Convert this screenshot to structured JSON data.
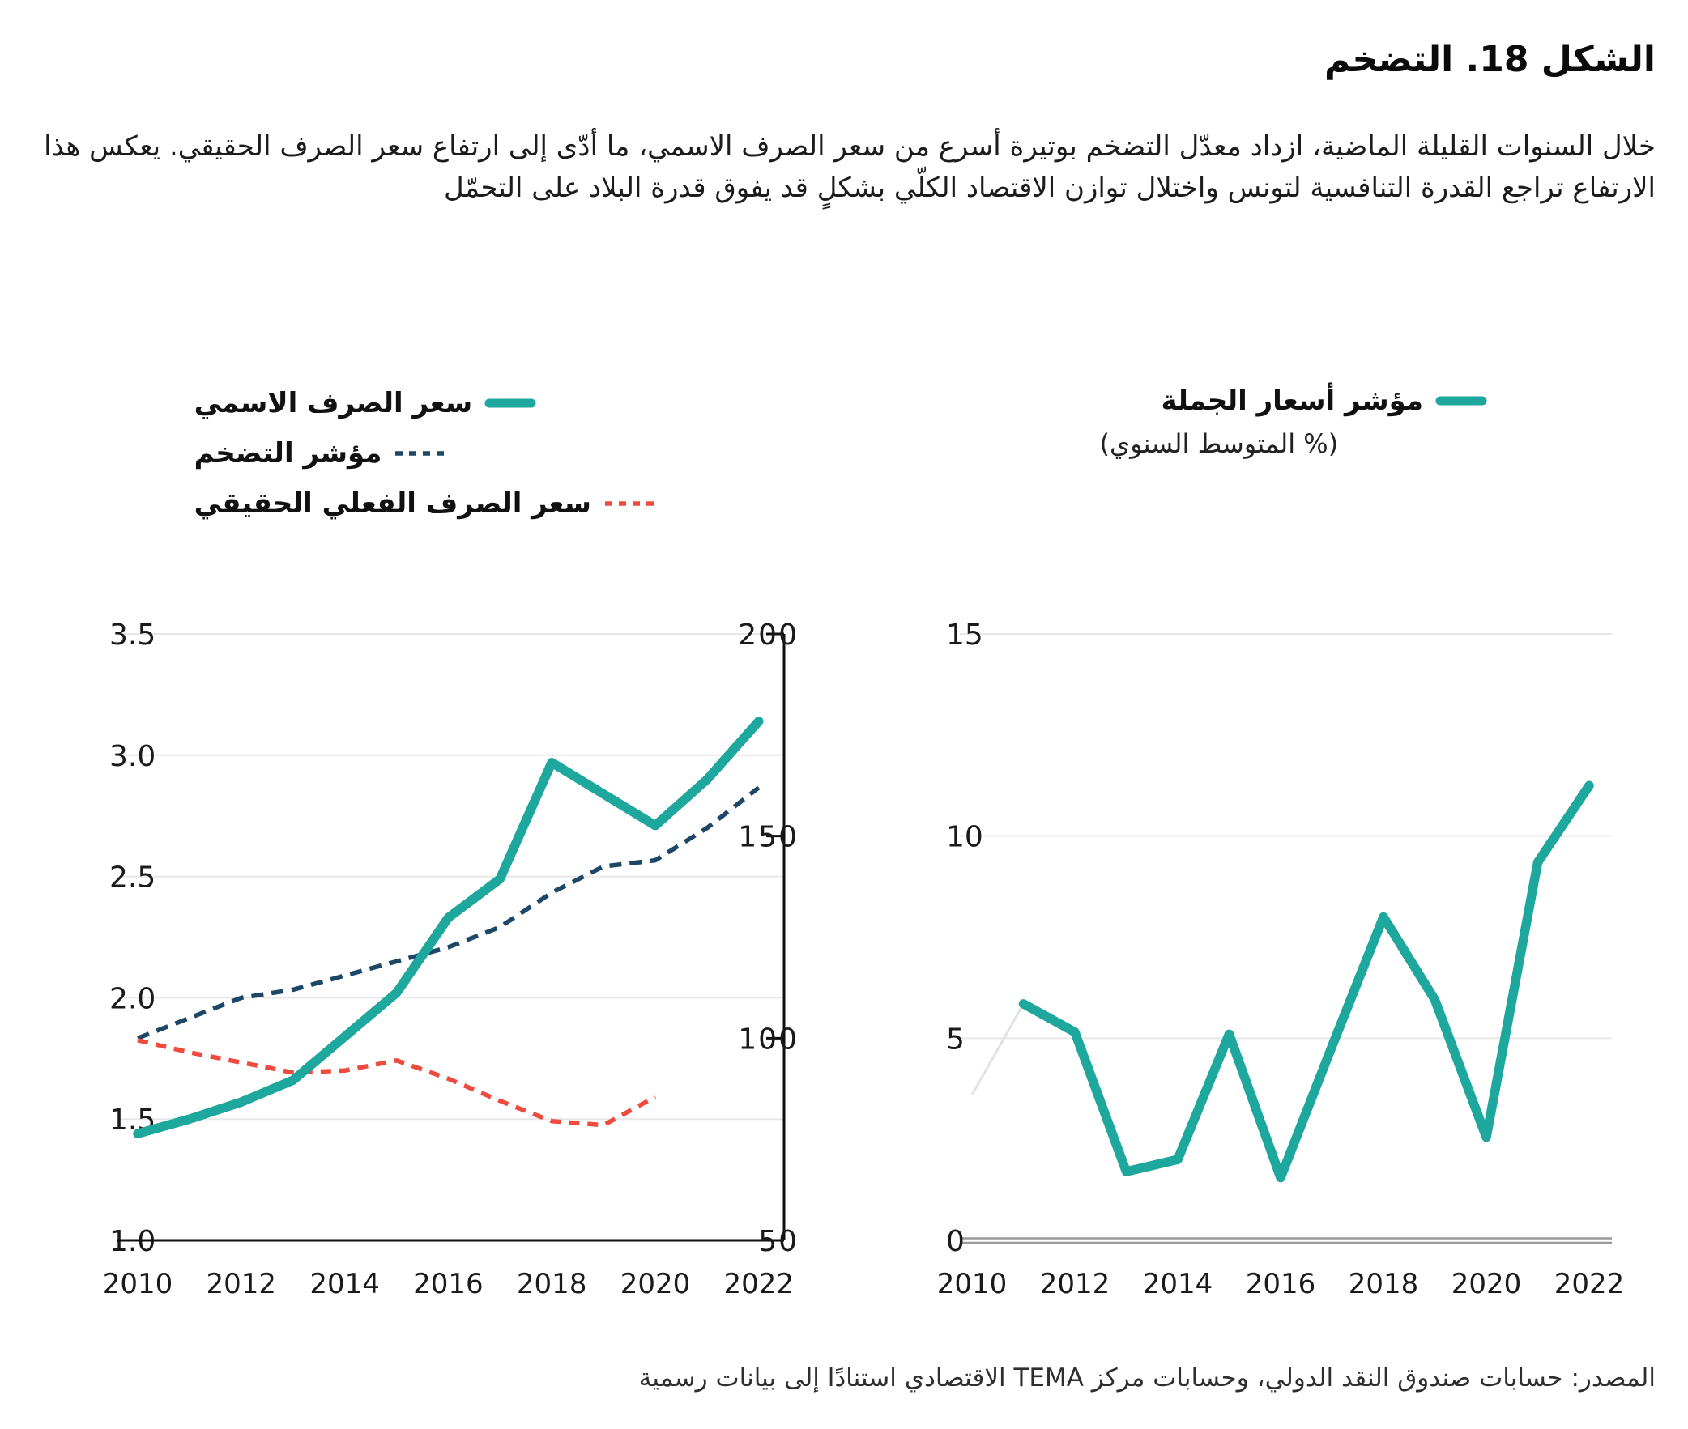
{
  "title": "الشكل 18. التضخم",
  "intro": "خلال السنوات القليلة الماضية، ازداد معدّل التضخم بوتيرة أسرع من سعر الصرف الاسمي، ما أدّى إلى ارتفاع سعر الصرف الحقيقي. يعكس هذا الارتفاع تراجع القدرة التنافسية لتونس واختلال توازن الاقتصاد الكلّي بشكلٍ قد يفوق قدرة البلاد على التحمّل",
  "source": "المصدر: حسابات صندوق النقد الدولي،  وحسابات مركز TEMA الاقتصادي استنادًا إلى بيانات رسمية",
  "colors": {
    "teal": "#1ea79d",
    "navy": "#1c4766",
    "red": "#ee4a3e",
    "grid": "#e7e7e7",
    "axis": "#0f0f0f",
    "zero_axis": "#9a9a9a",
    "faint_segment": "#e2e2e2",
    "label": "#1a1a1a"
  },
  "left_legend": {
    "items": [
      {
        "key": "nominal-exchange-rate",
        "label": "سعر الصرف الاسمي",
        "color": "teal",
        "line": "solid"
      },
      {
        "key": "inflation-index",
        "label": "مؤشر التضخم",
        "color": "navy",
        "line": "dashed"
      },
      {
        "key": "real-effective-exchange-rate",
        "label": "سعر الصرف الفعلي الحقيقي",
        "color": "red",
        "line": "dashed"
      }
    ]
  },
  "right_legend": {
    "key": "wholesale-price-index",
    "label": "مؤشر أسعار الجملة",
    "sublabel": "(% المتوسط السنوي)",
    "color": "teal",
    "line": "solid"
  },
  "chart_data": [
    {
      "type": "line",
      "position": "left",
      "x": [
        2010,
        2011,
        2012,
        2013,
        2014,
        2015,
        2016,
        2017,
        2018,
        2019,
        2020,
        2021,
        2022
      ],
      "x_ticks": [
        2010,
        2012,
        2014,
        2016,
        2018,
        2020,
        2022
      ],
      "left_axis": {
        "min": 1.0,
        "max": 3.5,
        "ticks": [
          "3.5",
          "3.0",
          "2.5",
          "2.0",
          "1.5",
          "1.0"
        ]
      },
      "right_axis": {
        "min": 50,
        "max": 200,
        "ticks": [
          200,
          150,
          100,
          50
        ]
      },
      "grid": true,
      "series": [
        {
          "key": "nominal-exchange-rate",
          "name": "سعر الصرف الاسمي",
          "axis": "left",
          "line": "solid",
          "color": "teal",
          "values": [
            1.44,
            1.5,
            1.57,
            1.66,
            1.84,
            2.02,
            2.33,
            2.49,
            2.97,
            2.84,
            2.71,
            2.9,
            3.14
          ]
        },
        {
          "key": "inflation-index",
          "name": "مؤشر التضخم",
          "axis": "right",
          "line": "dashed",
          "color": "navy",
          "values": [
            100,
            105,
            110,
            112,
            115.5,
            119,
            122.5,
            127.5,
            136,
            142.5,
            144,
            152,
            162
          ]
        },
        {
          "key": "real-effective-exchange-rate",
          "name": "سعر الصرف الفعلي الحقيقي",
          "axis": "right",
          "line": "dashed",
          "color": "red",
          "values": [
            99.5,
            96.5,
            94,
            91.5,
            92,
            94.5,
            90,
            84.5,
            79.5,
            78.5,
            85.5,
            null,
            null
          ]
        }
      ]
    },
    {
      "type": "line",
      "position": "right",
      "x": [
        2010,
        2011,
        2012,
        2013,
        2014,
        2015,
        2016,
        2017,
        2018,
        2019,
        2020,
        2021,
        2022
      ],
      "x_ticks": [
        2010,
        2012,
        2014,
        2016,
        2018,
        2020,
        2022
      ],
      "y_axis": {
        "min": 0,
        "max": 15,
        "ticks": [
          15,
          10,
          5,
          0
        ]
      },
      "grid": true,
      "legend_position": "top-right",
      "series": [
        {
          "key": "wholesale-price-index",
          "name": "مؤشر أسعار الجملة",
          "line": "solid",
          "color": "teal",
          "faint_first_segment": true,
          "values": [
            3.6,
            5.85,
            5.15,
            1.7,
            2.0,
            5.1,
            1.55,
            4.8,
            8.0,
            5.95,
            2.55,
            9.35,
            11.25
          ]
        }
      ]
    }
  ]
}
